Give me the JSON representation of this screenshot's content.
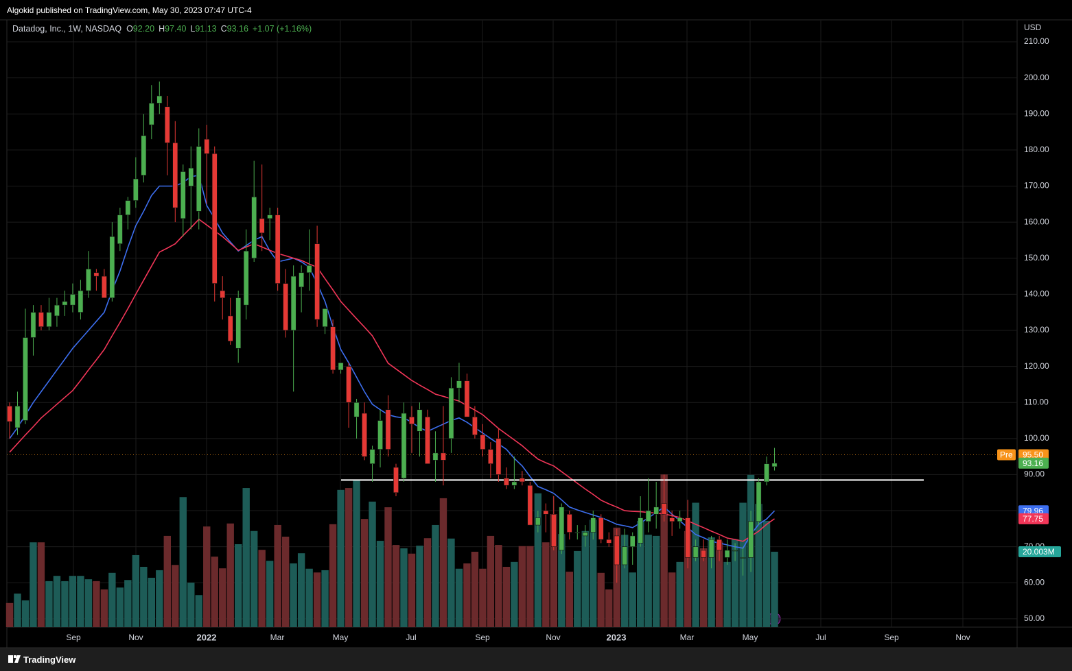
{
  "publisher": "Algokid published on TradingView.com, May 30, 2023 07:47 UTC-4",
  "footer": "TradingView",
  "chart_data": {
    "type": "candlestick",
    "title": "Datadog, Inc., 1W, NASDAQ",
    "legend": [
      {
        "label": "O",
        "value": "92.20"
      },
      {
        "label": "H",
        "value": "97.40"
      },
      {
        "label": "L",
        "value": "91.13"
      },
      {
        "label": "C",
        "value": "93.16"
      }
    ],
    "change": "+1.07 (+1.16%)",
    "currency": "USD",
    "up_color": "#4caf50",
    "down_color": "#e53935",
    "volume_up_color": "#1d5c57",
    "volume_down_color": "#6b2a2c",
    "ylim": [
      47.7,
      215.9
    ],
    "yticks": [
      {
        "value": 50,
        "label": "50.00"
      },
      {
        "value": 60,
        "label": "60.00"
      },
      {
        "value": 70,
        "label": "70.00"
      },
      {
        "value": 80,
        "label": "80.00"
      },
      {
        "value": 90,
        "label": "90.00"
      },
      {
        "value": 100,
        "label": "100.00"
      },
      {
        "value": 110,
        "label": "110.00"
      },
      {
        "value": 120,
        "label": "120.00"
      },
      {
        "value": 130,
        "label": "130.00"
      },
      {
        "value": 140,
        "label": "140.00"
      },
      {
        "value": 150,
        "label": "150.00"
      },
      {
        "value": 160,
        "label": "160.00"
      },
      {
        "value": 170,
        "label": "170.00"
      },
      {
        "value": 180,
        "label": "180.00"
      },
      {
        "value": 190,
        "label": "190.00"
      },
      {
        "value": 200,
        "label": "200.00"
      },
      {
        "value": 210,
        "label": "210.00"
      }
    ],
    "xtick_labels": [
      "Sep",
      "Nov",
      "2022",
      "Mar",
      "May",
      "Jul",
      "Sep",
      "Nov",
      "2023",
      "Mar",
      "May",
      "Jul",
      "Sep",
      "Nov"
    ],
    "grid": true,
    "ohlc": [
      [
        109,
        110,
        100,
        104.7
      ],
      [
        103,
        113,
        101,
        109
      ],
      [
        105,
        136,
        104,
        128
      ],
      [
        128,
        137,
        123,
        135
      ],
      [
        135,
        137,
        130,
        131
      ],
      [
        131,
        139,
        130,
        135
      ],
      [
        134,
        139,
        131,
        137
      ],
      [
        137,
        141,
        134,
        138
      ],
      [
        137,
        143,
        135,
        140
      ],
      [
        135,
        144,
        133,
        141
      ],
      [
        141,
        152,
        139,
        147
      ],
      [
        146,
        147,
        141,
        145
      ],
      [
        145,
        147,
        139,
        139
      ],
      [
        139,
        160,
        138,
        156
      ],
      [
        154,
        164,
        152,
        162
      ],
      [
        162,
        167,
        158,
        166
      ],
      [
        166,
        178,
        164,
        172
      ],
      [
        173,
        190,
        171,
        184
      ],
      [
        187,
        198,
        183,
        193
      ],
      [
        193,
        199,
        190,
        195
      ],
      [
        192,
        195,
        173,
        182
      ],
      [
        182,
        188,
        160,
        164
      ],
      [
        161,
        176,
        156,
        174
      ],
      [
        170,
        181,
        158,
        175
      ],
      [
        163,
        186,
        158,
        181
      ],
      [
        183,
        187,
        165,
        179
      ],
      [
        179,
        181,
        138,
        143
      ],
      [
        141,
        145,
        133,
        139
      ],
      [
        134,
        139,
        126,
        127
      ],
      [
        125,
        141,
        121,
        139
      ],
      [
        137,
        158,
        133,
        152
      ],
      [
        150,
        177,
        149,
        167
      ],
      [
        161,
        176,
        152,
        157
      ],
      [
        161,
        164,
        155,
        162
      ],
      [
        162,
        164,
        141,
        143
      ],
      [
        143,
        147,
        128,
        130
      ],
      [
        130,
        148,
        113,
        145
      ],
      [
        142,
        148,
        135,
        146
      ],
      [
        146,
        158,
        141,
        148
      ],
      [
        154,
        159,
        131,
        133
      ],
      [
        131,
        136,
        129,
        136
      ],
      [
        131,
        133,
        118,
        119
      ],
      [
        119,
        121,
        118,
        121
      ],
      [
        120,
        121,
        103,
        110
      ],
      [
        106,
        111,
        100,
        110
      ],
      [
        107,
        110,
        94,
        95
      ],
      [
        93,
        98,
        88,
        97
      ],
      [
        97,
        108,
        92,
        105
      ],
      [
        108,
        112,
        95,
        97
      ],
      [
        92,
        93,
        84,
        85
      ],
      [
        89,
        110,
        88,
        107
      ],
      [
        106,
        109,
        96,
        104
      ],
      [
        102,
        110,
        95,
        108
      ],
      [
        106,
        108,
        93,
        93
      ],
      [
        94,
        102,
        88,
        96
      ],
      [
        96,
        109,
        87,
        94
      ],
      [
        100,
        117,
        96,
        114
      ],
      [
        114,
        121,
        110,
        116
      ],
      [
        116,
        118,
        106,
        106
      ],
      [
        106,
        109,
        100,
        101
      ],
      [
        101,
        104,
        95,
        97
      ],
      [
        97,
        99,
        89,
        93
      ],
      [
        100,
        103,
        88,
        90
      ],
      [
        89,
        92,
        86,
        87
      ],
      [
        87,
        95,
        86,
        88
      ],
      [
        89,
        91,
        87,
        88
      ],
      [
        87,
        88,
        76,
        76
      ],
      [
        76,
        80,
        74,
        78
      ],
      [
        80,
        82,
        74,
        79
      ],
      [
        79,
        84,
        69,
        70
      ],
      [
        69,
        82,
        68,
        81
      ],
      [
        79,
        80,
        72,
        74
      ],
      [
        74,
        76,
        72,
        74
      ],
      [
        73,
        76,
        70,
        74
      ],
      [
        74,
        80,
        72,
        78
      ],
      [
        78,
        79,
        71,
        72
      ],
      [
        72,
        74,
        70,
        71
      ],
      [
        73,
        75,
        60,
        65
      ],
      [
        65,
        75,
        64,
        70
      ],
      [
        70,
        74,
        65,
        73
      ],
      [
        71,
        84,
        70,
        78
      ],
      [
        77,
        89,
        74,
        80
      ],
      [
        79,
        88,
        75,
        81
      ],
      [
        82,
        90,
        77,
        79
      ],
      [
        78,
        80,
        73,
        77
      ],
      [
        77,
        80,
        75,
        78
      ],
      [
        78,
        83,
        64,
        67
      ],
      [
        67,
        72,
        66,
        70
      ],
      [
        69,
        72,
        66,
        67
      ],
      [
        67,
        73,
        64,
        72
      ],
      [
        72,
        73,
        66,
        69
      ],
      [
        67,
        72,
        65,
        69
      ],
      [
        69,
        71,
        66,
        69
      ],
      [
        67,
        70,
        62,
        67
      ],
      [
        67,
        80,
        63,
        77
      ],
      [
        77,
        89,
        76,
        88
      ],
      [
        88,
        95,
        87,
        93
      ],
      [
        92.2,
        97.4,
        91.13,
        93.16
      ]
    ],
    "volume": [
      6.4,
      8.9,
      7.1,
      22.5,
      22.5,
      12.2,
      13.6,
      12.2,
      13.6,
      13.6,
      12.7,
      12.2,
      10,
      14.4,
      10.5,
      12.5,
      19.1,
      16,
      13.1,
      15.1,
      24.2,
      16.5,
      34.5,
      11.8,
      8.5,
      26.7,
      18.7,
      15.6,
      27.5,
      22,
      36.9,
      25.5,
      20.5,
      17.6,
      27.1,
      24,
      16.9,
      19.6,
      15.5,
      14.5,
      15.1,
      27.3,
      36.4,
      36.9,
      39.1,
      28.7,
      33.3,
      22.9,
      31.8,
      21.8,
      20.9,
      19.5,
      21.6,
      23.6,
      27.1,
      34.2,
      23.5,
      15.5,
      16.9,
      20,
      15.5,
      24.2,
      21.8,
      16,
      17.3,
      21.5,
      21.5,
      35.5,
      22.5,
      30,
      24.7,
      14.7,
      20.2,
      25.5,
      28.5,
      14.4,
      10,
      26.4,
      24.5,
      14.5,
      28.2,
      24.5,
      24.2,
      40.5,
      14.5,
      17.3,
      25.5,
      33,
      20.9,
      23.8,
      22.7,
      17.3,
      23.3,
      33,
      40.4,
      32.7,
      28.2,
      20.003
    ],
    "volume_label": "20.003M",
    "ma": [
      {
        "color": "#3d6ff0",
        "last_label": "79.96",
        "values": [
          100,
          103,
          106.5,
          110,
          113,
          116,
          119,
          122,
          125,
          127.5,
          130,
          132.5,
          135,
          141,
          146.5,
          153,
          159,
          163,
          167.4,
          170,
          170,
          170,
          171,
          172.6,
          173,
          164.6,
          161,
          157,
          154.5,
          152,
          153.5,
          155,
          156,
          152,
          149,
          149.5,
          150,
          149,
          147.5,
          143,
          138,
          131,
          124.7,
          121,
          117,
          113,
          109.5,
          108,
          106.6,
          106,
          105.7,
          104.5,
          103,
          102,
          103,
          104,
          105,
          105.7,
          104.5,
          103,
          101.5,
          100,
          98.5,
          97,
          94.5,
          92.4,
          89.5,
          86.7,
          85.8,
          84.8,
          83,
          81,
          80.2,
          79.5,
          78.8,
          78.1,
          77.2,
          76.2,
          75.8,
          75.3,
          76.6,
          78,
          79.5,
          81,
          79,
          77.2,
          75.3,
          73.4,
          72.5,
          71.5,
          71,
          70.5,
          70,
          69.6,
          73.4,
          76.2,
          77.7,
          79.96
        ]
      },
      {
        "color": "#f23658",
        "last_label": "77.75",
        "values": [
          96.2,
          98.6,
          101,
          103.3,
          105.7,
          107.6,
          109.5,
          111.4,
          113.3,
          116.1,
          119,
          121.8,
          124.7,
          128.5,
          132.2,
          136,
          140,
          143.9,
          147.8,
          151.7,
          152.8,
          154,
          156.3,
          158.5,
          160.8,
          159.2,
          157.6,
          156,
          154.1,
          152.2,
          153.1,
          154,
          153.1,
          152.2,
          151.3,
          150.7,
          150,
          149.4,
          148.4,
          147.5,
          144.3,
          141.2,
          138,
          135.6,
          133.2,
          130.9,
          128.5,
          124.7,
          120.9,
          119.3,
          117.7,
          116.1,
          114.8,
          113.6,
          112.3,
          111.7,
          111,
          110.4,
          109.1,
          107.9,
          106.6,
          104.7,
          102.8,
          101.2,
          99.6,
          98,
          96.1,
          94.3,
          93.3,
          92.4,
          90.8,
          89.2,
          87.6,
          86,
          84.5,
          82.9,
          81.9,
          81,
          80,
          79.8,
          79.7,
          79.5,
          79.3,
          79.1,
          78.6,
          78.1,
          77.2,
          76.2,
          75.3,
          74.3,
          73.4,
          72.4,
          72,
          71.5,
          72.9,
          74.3,
          76.2,
          77.75
        ]
      }
    ],
    "last_label": "93.16",
    "premarket": {
      "label": "Pre",
      "value": 95.5,
      "value_label": "95.50",
      "color": "#f7931a"
    },
    "hline": 88.5
  }
}
